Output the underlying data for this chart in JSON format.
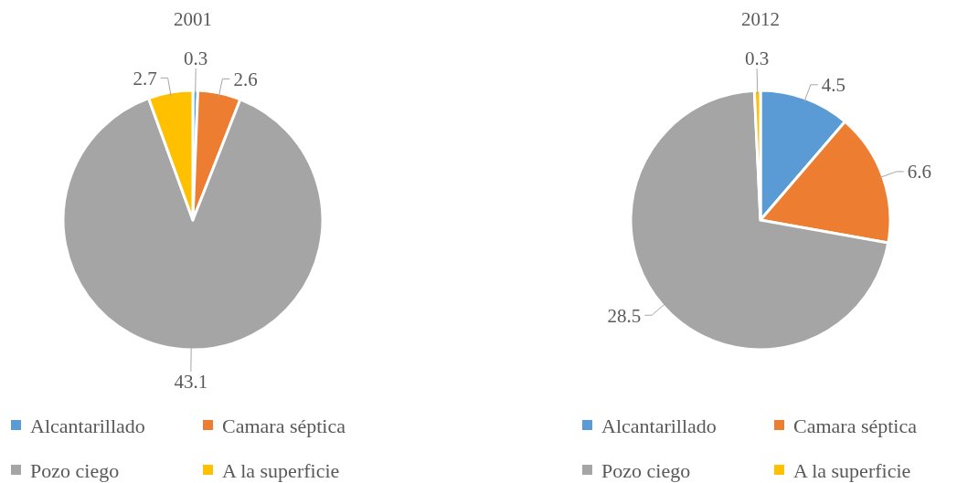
{
  "chart_data": [
    {
      "type": "pie",
      "title": "2001",
      "categories": [
        "Alcantarillado",
        "Camara séptica",
        "Pozo ciego",
        "A la superficie"
      ],
      "values": [
        0.3,
        2.6,
        43.1,
        2.7
      ],
      "colors": [
        "#5b9bd5",
        "#ed7d31",
        "#a5a5a5",
        "#ffc000"
      ],
      "data_labels": true,
      "legend": "bottom"
    },
    {
      "type": "pie",
      "title": "2012",
      "categories": [
        "Alcantarillado",
        "Camara séptica",
        "Pozo ciego",
        "A la superficie"
      ],
      "values": [
        4.5,
        6.6,
        28.5,
        0.3
      ],
      "colors": [
        "#5b9bd5",
        "#ed7d31",
        "#a5a5a5",
        "#ffc000"
      ],
      "data_labels": true,
      "legend": "bottom"
    }
  ]
}
